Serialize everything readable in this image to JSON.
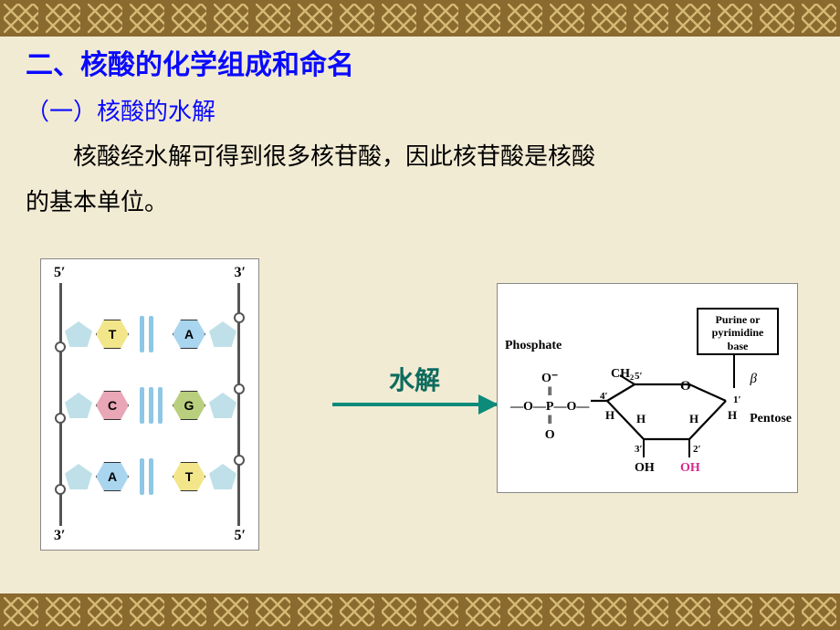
{
  "heading": "二、核酸的化学组成和命名",
  "subheading": "（一）核酸的水解",
  "body_line1": "核酸经水解可得到很多核苷酸，因此核苷酸是核酸",
  "body_line2": "的基本单位。",
  "arrow_label": "水解",
  "left_fig": {
    "labels": {
      "top_left": "5′",
      "top_right": "3′",
      "bottom_left": "3′",
      "bottom_right": "5′"
    },
    "pairs": [
      {
        "left": "T",
        "right": "A",
        "left_color": "#f3e68a",
        "right_color": "#a9d5ef",
        "hbond_count": 2,
        "hbond_color": "#8ec7e6"
      },
      {
        "left": "C",
        "right": "G",
        "left_color": "#e9a6b6",
        "right_color": "#b9cf7e",
        "hbond_count": 3,
        "hbond_color": "#8ec7e6"
      },
      {
        "left": "A",
        "right": "T",
        "left_color": "#a9d5ef",
        "right_color": "#f3e68a",
        "hbond_count": 2,
        "hbond_color": "#8ec7e6"
      }
    ],
    "sugar_color": "#bfe0e8",
    "backbone_color": "#555555"
  },
  "right_fig": {
    "phosphate_label": "Phosphate",
    "pentose_label": "Pentose",
    "base_box_line1": "Purine or",
    "base_box_line2": "pyrimidine",
    "base_box_line3": "base",
    "beta": "β",
    "atoms": {
      "ch2o": "CH₂",
      "o_ring": "O",
      "h": "H",
      "oh": "OH",
      "oh_pink": "OH"
    },
    "primes": {
      "c1": "1′",
      "c2": "2′",
      "c3": "3′",
      "c4": "4′",
      "c5": "5′"
    },
    "phosphate_struct": {
      "top": "O⁻",
      "mid": "—O—P—O—",
      "bot": "O"
    }
  },
  "colors": {
    "background": "#f2ebd3",
    "heading": "#0a0aff",
    "arrow": "#0d8b7a",
    "arrow_text": "#0d6b5f",
    "border_dark": "#8a6a2f",
    "border_light": "#d4b874",
    "pink": "#d62a8a"
  }
}
